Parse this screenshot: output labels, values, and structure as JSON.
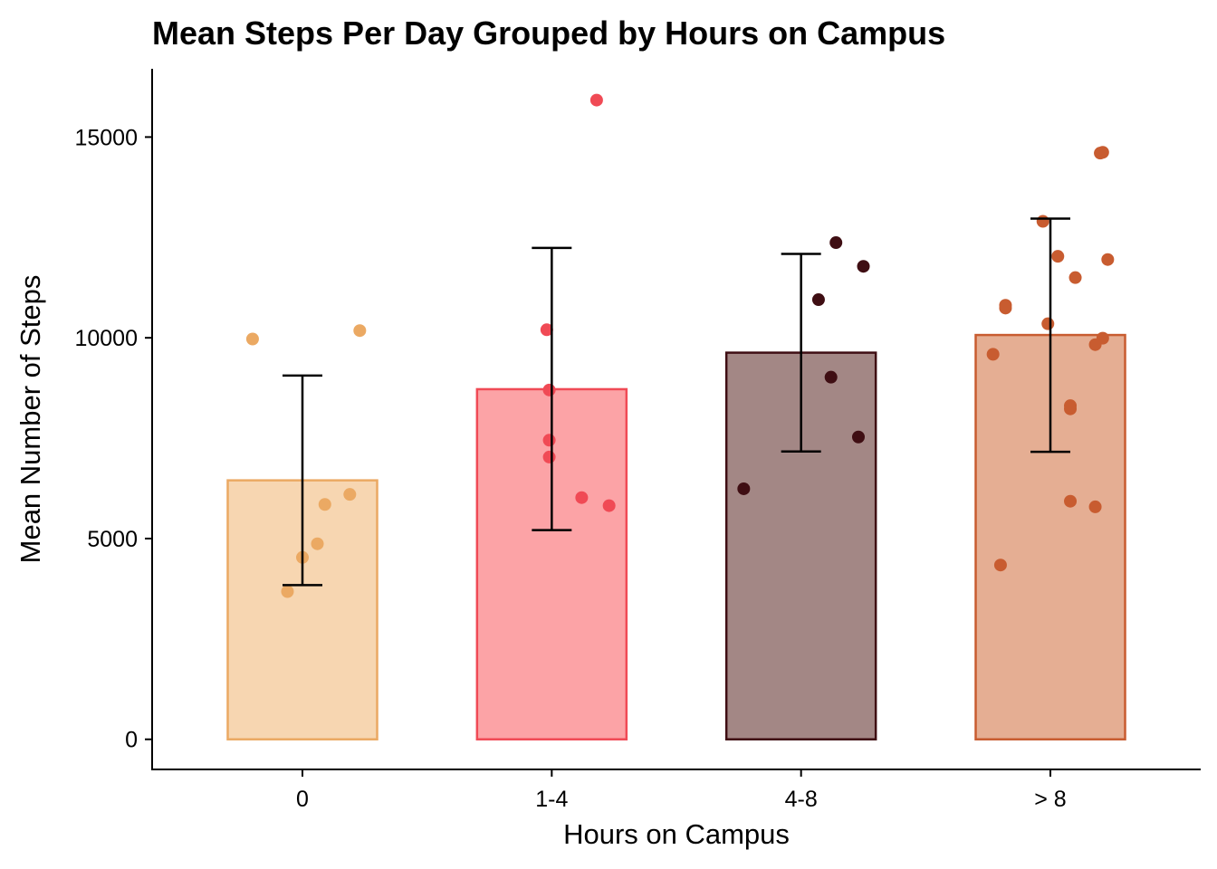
{
  "chart_data": {
    "type": "bar",
    "title": "Mean Steps Per Day Grouped by Hours on Campus",
    "xlabel": "Hours on Campus",
    "ylabel": "Mean Number of Steps",
    "categories": [
      "0",
      "1-4",
      "4-8",
      "> 8"
    ],
    "values": [
      6450,
      8720,
      9630,
      10070
    ],
    "error_low": [
      3840,
      5210,
      7170,
      7160
    ],
    "error_high": [
      9060,
      12240,
      12090,
      12970
    ],
    "ylim": [
      -750,
      16700
    ],
    "yticks": [
      0,
      5000,
      10000,
      15000
    ],
    "ytick_labels": [
      "0",
      "5000",
      "10000",
      "15000"
    ],
    "grid": false,
    "legend": "none",
    "colors": {
      "fill": [
        "#F7D6B1",
        "#FCA3A6",
        "#A38785",
        "#E5AE93"
      ],
      "stroke": [
        "#EBA963",
        "#F04A55",
        "#3F0E13",
        "#C85C30"
      ],
      "points": [
        "#EBA963",
        "#F04A55",
        "#3F0E13",
        "#C85C30"
      ]
    },
    "points": [
      [
        {
          "jitter": -0.2,
          "y": 9970
        },
        {
          "jitter": 0.23,
          "y": 10180
        },
        {
          "jitter": 0.19,
          "y": 6100
        },
        {
          "jitter": 0.09,
          "y": 5850
        },
        {
          "jitter": 0.06,
          "y": 4870
        },
        {
          "jitter": 0.0,
          "y": 4530
        },
        {
          "jitter": -0.06,
          "y": 3680
        }
      ],
      [
        {
          "jitter": 0.18,
          "y": 15920
        },
        {
          "jitter": -0.02,
          "y": 10200
        },
        {
          "jitter": -0.01,
          "y": 8700
        },
        {
          "jitter": -0.01,
          "y": 7450
        },
        {
          "jitter": -0.01,
          "y": 7030
        },
        {
          "jitter": 0.12,
          "y": 6020
        },
        {
          "jitter": 0.23,
          "y": 5820
        }
      ],
      [
        {
          "jitter": 0.14,
          "y": 12370
        },
        {
          "jitter": 0.25,
          "y": 11780
        },
        {
          "jitter": 0.07,
          "y": 10950
        },
        {
          "jitter": 0.12,
          "y": 9020
        },
        {
          "jitter": 0.23,
          "y": 7530
        },
        {
          "jitter": -0.23,
          "y": 6240
        }
      ],
      [
        {
          "jitter": 0.2,
          "y": 14600
        },
        {
          "jitter": 0.21,
          "y": 14620
        },
        {
          "jitter": -0.03,
          "y": 12900
        },
        {
          "jitter": 0.03,
          "y": 12030
        },
        {
          "jitter": 0.23,
          "y": 11950
        },
        {
          "jitter": 0.1,
          "y": 11500
        },
        {
          "jitter": -0.18,
          "y": 10810
        },
        {
          "jitter": -0.18,
          "y": 10740
        },
        {
          "jitter": -0.01,
          "y": 10350
        },
        {
          "jitter": 0.21,
          "y": 9990
        },
        {
          "jitter": 0.18,
          "y": 9830
        },
        {
          "jitter": -0.23,
          "y": 9590
        },
        {
          "jitter": 0.08,
          "y": 8310
        },
        {
          "jitter": 0.08,
          "y": 8230
        },
        {
          "jitter": 0.08,
          "y": 5930
        },
        {
          "jitter": 0.18,
          "y": 5790
        },
        {
          "jitter": -0.2,
          "y": 4340
        }
      ]
    ]
  }
}
